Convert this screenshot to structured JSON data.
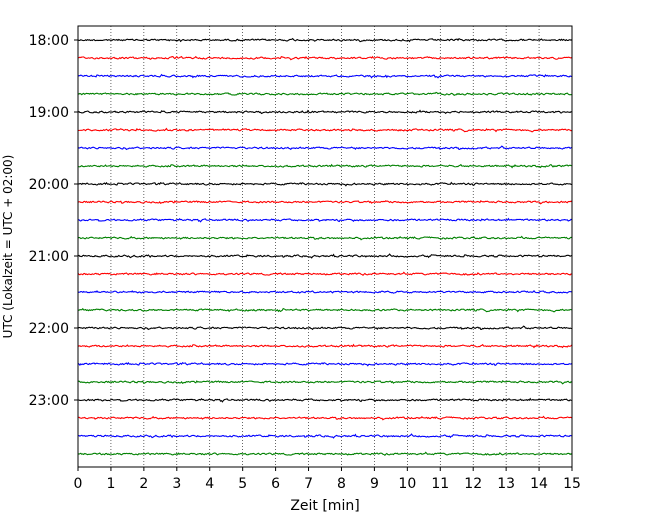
{
  "chart_data": {
    "type": "line",
    "title": "",
    "xlabel": "Zeit  [min]",
    "ylabel": "UTC (Lokalzeit = UTC + 02:00)",
    "xlim": [
      0,
      15
    ],
    "x_ticks": [
      "0",
      "1",
      "2",
      "3",
      "4",
      "5",
      "6",
      "7",
      "8",
      "9",
      "10",
      "11",
      "12",
      "13",
      "14",
      "15"
    ],
    "y_tick_labels": [
      "18:00",
      "19:00",
      "20:00",
      "21:00",
      "22:00",
      "23:00"
    ],
    "vertical_grid": "dotted",
    "trace_interval_min": 15,
    "trace_colors": [
      "#000000",
      "#ff0000",
      "#0000ff",
      "#008000"
    ],
    "traces": [
      {
        "start": "18:00",
        "color": "#000000"
      },
      {
        "start": "18:15",
        "color": "#ff0000"
      },
      {
        "start": "18:30",
        "color": "#0000ff"
      },
      {
        "start": "18:45",
        "color": "#008000"
      },
      {
        "start": "19:00",
        "color": "#000000"
      },
      {
        "start": "19:15",
        "color": "#ff0000"
      },
      {
        "start": "19:30",
        "color": "#0000ff"
      },
      {
        "start": "19:45",
        "color": "#008000"
      },
      {
        "start": "20:00",
        "color": "#000000"
      },
      {
        "start": "20:15",
        "color": "#ff0000"
      },
      {
        "start": "20:30",
        "color": "#0000ff"
      },
      {
        "start": "20:45",
        "color": "#008000"
      },
      {
        "start": "21:00",
        "color": "#000000"
      },
      {
        "start": "21:15",
        "color": "#ff0000"
      },
      {
        "start": "21:30",
        "color": "#0000ff"
      },
      {
        "start": "21:45",
        "color": "#008000"
      },
      {
        "start": "22:00",
        "color": "#000000"
      },
      {
        "start": "22:15",
        "color": "#ff0000"
      },
      {
        "start": "22:30",
        "color": "#0000ff"
      },
      {
        "start": "22:45",
        "color": "#008000"
      },
      {
        "start": "23:00",
        "color": "#000000"
      },
      {
        "start": "23:15",
        "color": "#ff0000"
      },
      {
        "start": "23:30",
        "color": "#0000ff"
      },
      {
        "start": "23:45",
        "color": "#008000"
      }
    ]
  }
}
